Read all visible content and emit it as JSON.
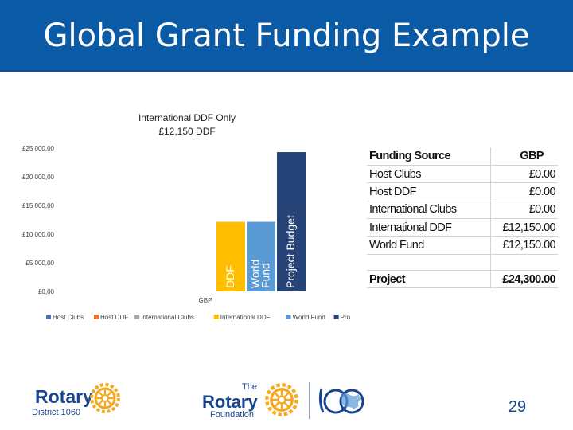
{
  "slide": {
    "title": "Global Grant Funding Example",
    "page_number": "29"
  },
  "chart_data": {
    "type": "bar",
    "title_lines": [
      "International DDF Only",
      "£12,150 DDF"
    ],
    "categories": [
      "GBP"
    ],
    "y_tick_labels": [
      "£0,00",
      "£5 000,00",
      "£10 000,00",
      "£15 000,00",
      "£20 000,00",
      "£25 000,00"
    ],
    "ylim": [
      0,
      25000
    ],
    "series": [
      {
        "name": "Host Clubs",
        "values": [
          0
        ],
        "color": "#4f74b2",
        "bar_label": ""
      },
      {
        "name": "Host DDF",
        "values": [
          0
        ],
        "color": "#e6792b",
        "bar_label": ""
      },
      {
        "name": "International Clubs",
        "values": [
          0
        ],
        "color": "#a5a5a5",
        "bar_label": ""
      },
      {
        "name": "International DDF",
        "values": [
          12150
        ],
        "color": "#ffbf00",
        "bar_label": "DDF"
      },
      {
        "name": "World Fund",
        "values": [
          12150
        ],
        "color": "#5b9bd5",
        "bar_label": "World Fund"
      },
      {
        "name": "Project",
        "values": [
          24300
        ],
        "color": "#264478",
        "bar_label": "Project Budget"
      }
    ],
    "legend_position": "bottom"
  },
  "table": {
    "headers": [
      "Funding Source",
      "GBP"
    ],
    "rows": [
      [
        "Host Clubs",
        "£0.00"
      ],
      [
        "Host DDF",
        "£0.00"
      ],
      [
        "International Clubs",
        "£0.00"
      ],
      [
        "International DDF",
        "£12,150.00"
      ],
      [
        "World Fund",
        "£12,150.00"
      ]
    ],
    "total": [
      "Project",
      "£24,300.00"
    ]
  },
  "logos": {
    "district": {
      "word": "Rotary",
      "sub": "District 1060"
    },
    "foundation": {
      "the": "The",
      "word": "Rotary",
      "sub": "Foundation"
    }
  },
  "colors": {
    "header_bg": "#0a5aa6",
    "rotary_blue": "#17458f",
    "rotary_gold": "#f7a81b"
  }
}
